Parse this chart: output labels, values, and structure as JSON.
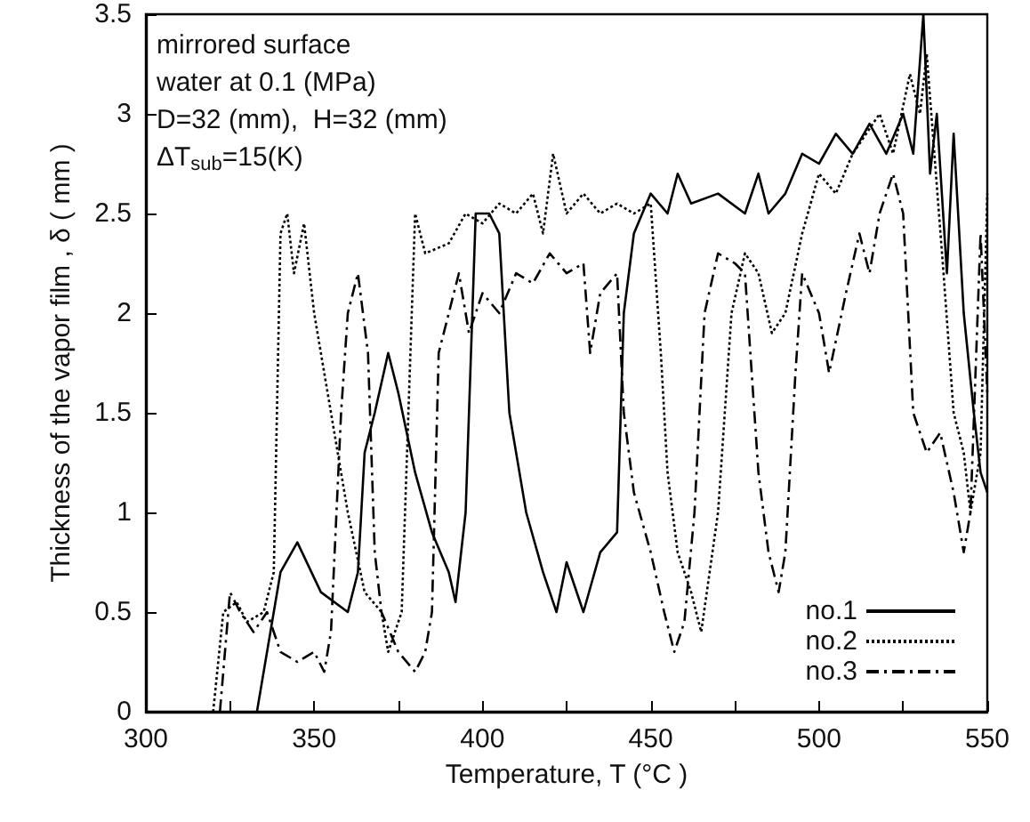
{
  "chart_data": {
    "type": "line",
    "xlabel": "Temperature, T (°C )",
    "ylabel": "Thickness of the vapor film , δ ( mm )",
    "annotations": [
      "mirrored surface",
      "water at 0.1 (MPa)",
      "D=32 (mm),  H=32 (mm)",
      "ΔT$_{sub}$=15(K)"
    ],
    "xlim": [
      300,
      550
    ],
    "xticks": [
      300,
      {
        "value": 325,
        "label": null
      },
      350,
      {
        "value": 375,
        "label": null
      },
      400,
      {
        "value": 425,
        "label": null
      },
      450,
      {
        "value": 475,
        "label": null
      },
      500,
      {
        "value": 525,
        "label": null
      },
      550
    ],
    "ylim": [
      0,
      3.5
    ],
    "yticks": [
      0,
      0.5,
      1,
      1.5,
      2,
      2.5,
      3,
      3.5
    ],
    "grid": false,
    "legend": "bottom right",
    "marker": "none",
    "series": [
      {
        "name": "no.1",
        "color": "#000000",
        "line_style": "solid",
        "x": [
          333,
          340,
          345,
          352,
          360,
          363,
          365,
          368,
          372,
          375,
          380,
          385,
          390,
          392,
          395,
          398,
          402,
          405,
          408,
          413,
          418,
          422,
          425,
          430,
          435,
          440,
          442,
          445,
          450,
          455,
          458,
          462,
          470,
          478,
          482,
          485,
          490,
          495,
          500,
          505,
          510,
          515,
          520,
          525,
          528,
          531,
          533,
          535,
          538,
          540,
          543,
          546,
          548,
          550
        ],
        "values": [
          0,
          0.7,
          0.85,
          0.6,
          0.5,
          0.7,
          1.3,
          1.5,
          1.8,
          1.6,
          1.2,
          0.9,
          0.7,
          0.55,
          1.0,
          2.5,
          2.5,
          2.4,
          1.5,
          1.0,
          0.7,
          0.5,
          0.75,
          0.5,
          0.8,
          0.9,
          2.0,
          2.4,
          2.6,
          2.5,
          2.7,
          2.55,
          2.6,
          2.5,
          2.7,
          2.5,
          2.6,
          2.8,
          2.75,
          2.9,
          2.8,
          2.95,
          2.8,
          3.0,
          2.8,
          3.5,
          2.7,
          3.0,
          2.2,
          2.9,
          2.0,
          1.5,
          1.2,
          1.1
        ]
      },
      {
        "name": "no.2",
        "color": "#000000",
        "line_style": "dotted",
        "x": [
          320,
          323,
          327,
          330,
          335,
          338,
          340,
          342,
          344,
          347,
          350,
          355,
          360,
          365,
          370,
          372,
          376,
          378,
          380,
          383,
          390,
          395,
          400,
          405,
          410,
          415,
          418,
          421,
          425,
          430,
          435,
          440,
          445,
          450,
          453,
          455,
          458,
          462,
          465,
          470,
          474,
          478,
          482,
          486,
          490,
          495,
          500,
          505,
          510,
          518,
          522,
          527,
          530,
          532,
          537,
          540,
          543,
          545,
          548,
          550
        ],
        "values": [
          0,
          0.5,
          0.55,
          0.45,
          0.5,
          0.7,
          2.4,
          2.5,
          2.2,
          2.45,
          2.0,
          1.5,
          1.0,
          0.6,
          0.5,
          0.3,
          0.5,
          1.5,
          2.5,
          2.3,
          2.35,
          2.5,
          2.45,
          2.55,
          2.5,
          2.6,
          2.4,
          2.8,
          2.5,
          2.6,
          2.5,
          2.55,
          2.5,
          2.55,
          1.8,
          1.2,
          0.8,
          0.6,
          0.4,
          1.0,
          2.0,
          2.3,
          2.2,
          1.9,
          2.0,
          2.4,
          2.7,
          2.6,
          2.8,
          3.0,
          2.8,
          3.2,
          3.0,
          3.3,
          2.2,
          1.5,
          1.3,
          1.0,
          1.3,
          2.6
        ]
      },
      {
        "name": "no.3",
        "color": "#000000",
        "line_style": "dashed",
        "x": [
          322,
          325,
          328,
          332,
          336,
          340,
          345,
          350,
          353,
          355,
          358,
          360,
          363,
          366,
          368,
          370,
          375,
          380,
          383,
          385,
          387,
          390,
          393,
          396,
          400,
          405,
          410,
          415,
          420,
          425,
          430,
          432,
          435,
          440,
          442,
          445,
          450,
          454,
          457,
          460,
          463,
          466,
          470,
          475,
          478,
          482,
          485,
          488,
          490,
          493,
          495,
          500,
          503,
          508,
          512,
          515,
          518,
          522,
          525,
          528,
          532,
          536,
          540,
          543,
          545,
          548,
          550
        ],
        "values": [
          0,
          0.6,
          0.5,
          0.4,
          0.5,
          0.3,
          0.25,
          0.3,
          0.2,
          0.4,
          1.5,
          2.0,
          2.2,
          1.8,
          0.8,
          0.5,
          0.3,
          0.2,
          0.3,
          0.5,
          1.8,
          2.0,
          2.2,
          1.9,
          2.1,
          2.0,
          2.2,
          2.15,
          2.3,
          2.2,
          2.25,
          1.8,
          2.1,
          2.2,
          1.5,
          1.1,
          0.8,
          0.5,
          0.3,
          0.45,
          1.0,
          2.0,
          2.3,
          2.25,
          2.2,
          1.2,
          0.8,
          0.6,
          0.8,
          1.7,
          2.2,
          2.0,
          1.7,
          2.1,
          2.4,
          2.2,
          2.5,
          2.7,
          2.5,
          1.5,
          1.3,
          1.4,
          1.1,
          0.8,
          1.0,
          2.4,
          1.6
        ]
      }
    ]
  }
}
